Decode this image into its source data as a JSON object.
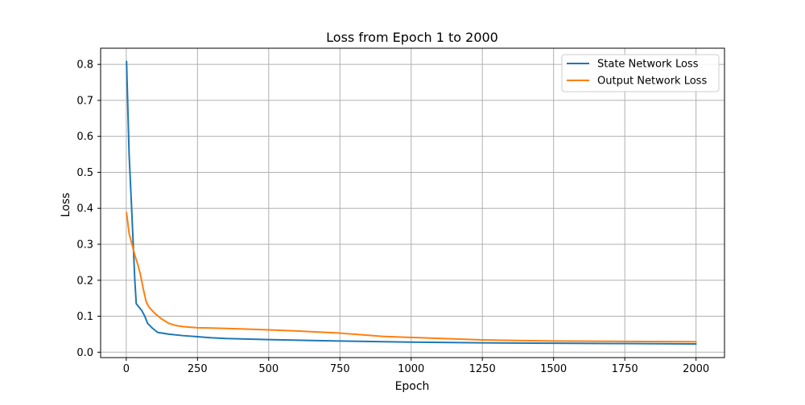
{
  "chart_data": {
    "type": "line",
    "title": "Loss from Epoch 1 to 2000",
    "xlabel": "Epoch",
    "ylabel": "Loss",
    "xlim": [
      -90,
      2100
    ],
    "ylim": [
      -0.015,
      0.845
    ],
    "xticks": [
      0,
      250,
      500,
      750,
      1000,
      1250,
      1500,
      1750,
      2000
    ],
    "yticks": [
      0.0,
      0.1,
      0.2,
      0.3,
      0.4,
      0.5,
      0.6,
      0.7,
      0.8
    ],
    "xtick_labels": [
      "0",
      "250",
      "500",
      "750",
      "1000",
      "1250",
      "1500",
      "1750",
      "2000"
    ],
    "ytick_labels": [
      "0.0",
      "0.1",
      "0.2",
      "0.3",
      "0.4",
      "0.5",
      "0.6",
      "0.7",
      "0.8"
    ],
    "grid": true,
    "legend_position": "top-right",
    "series": [
      {
        "name": "State Network Loss",
        "color": "#1f77b4",
        "x": [
          1,
          10,
          20,
          30,
          35,
          40,
          55,
          65,
          75,
          90,
          110,
          150,
          200,
          250,
          300,
          350,
          500,
          750,
          1000,
          1250,
          1500,
          1750,
          2000
        ],
        "y": [
          0.808,
          0.55,
          0.38,
          0.2,
          0.135,
          0.13,
          0.115,
          0.1,
          0.08,
          0.068,
          0.055,
          0.05,
          0.046,
          0.043,
          0.04,
          0.038,
          0.035,
          0.031,
          0.028,
          0.026,
          0.025,
          0.024,
          0.023
        ]
      },
      {
        "name": "Output Network Loss",
        "color": "#ff7f0e",
        "x": [
          1,
          10,
          20,
          30,
          40,
          50,
          60,
          70,
          80,
          100,
          125,
          150,
          175,
          200,
          250,
          300,
          400,
          500,
          600,
          700,
          750,
          800,
          900,
          1000,
          1250,
          1500,
          1750,
          2000
        ],
        "y": [
          0.388,
          0.33,
          0.3,
          0.27,
          0.245,
          0.215,
          0.175,
          0.14,
          0.125,
          0.108,
          0.092,
          0.08,
          0.074,
          0.071,
          0.068,
          0.067,
          0.065,
          0.062,
          0.059,
          0.055,
          0.053,
          0.05,
          0.044,
          0.041,
          0.034,
          0.031,
          0.03,
          0.029
        ]
      }
    ]
  }
}
